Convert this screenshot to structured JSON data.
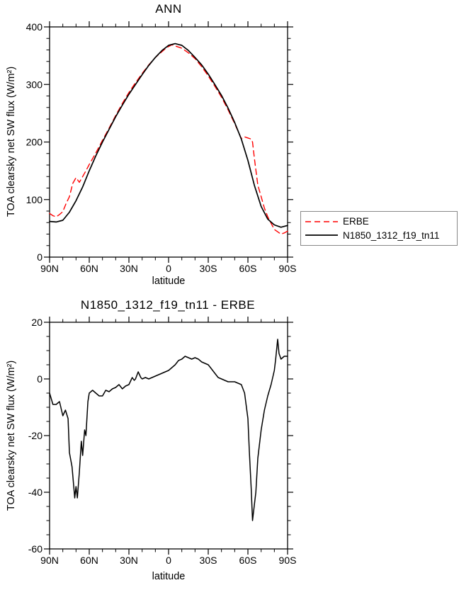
{
  "colors": {
    "background": "#ffffff",
    "frame": "#000000",
    "erbe_red": "#ff0000",
    "model_black": "#000000"
  },
  "chart_data": [
    {
      "type": "line",
      "title": "ANN",
      "xlabel": "latitude",
      "ylabel": "TOA clearsky net SW flux (W/m²)",
      "xlim": [
        90,
        -90
      ],
      "ylim": [
        0,
        400
      ],
      "x_minor_step": 10,
      "y_minor_step": 20,
      "xticks": [
        {
          "value": 90,
          "label": "90N"
        },
        {
          "value": 60,
          "label": "60N"
        },
        {
          "value": 30,
          "label": "30N"
        },
        {
          "value": 0,
          "label": "0"
        },
        {
          "value": -30,
          "label": "30S"
        },
        {
          "value": -60,
          "label": "60S"
        },
        {
          "value": -90,
          "label": "90S"
        }
      ],
      "yticks": [
        {
          "value": 0,
          "label": "0"
        },
        {
          "value": 100,
          "label": "100"
        },
        {
          "value": 200,
          "label": "200"
        },
        {
          "value": 300,
          "label": "300"
        },
        {
          "value": 400,
          "label": "400"
        }
      ],
      "legend_position": "right",
      "grid": false,
      "series": [
        {
          "name": "ERBE",
          "color": "#ff0000",
          "dash": "8,5",
          "width": 1.4,
          "x": [
            90,
            87.5,
            85,
            82.5,
            80,
            77.5,
            75,
            72.5,
            70,
            67.5,
            65,
            62.5,
            60,
            55,
            50,
            45,
            40,
            35,
            30,
            25,
            20,
            15,
            10,
            5,
            2.5,
            0,
            -2.5,
            -5,
            -10,
            -15,
            -20,
            -25,
            -30,
            -35,
            -40,
            -45,
            -50,
            -55,
            -57.5,
            -60,
            -62.5,
            -63.5,
            -65,
            -67.5,
            -70,
            -72.5,
            -75,
            -80,
            -85,
            -87.5,
            -90
          ],
          "values": [
            76,
            72,
            70,
            74,
            79,
            93,
            105,
            128,
            138,
            130,
            140,
            150,
            161,
            181,
            203,
            224,
            246,
            267,
            286,
            303,
            319,
            334,
            347,
            357,
            362,
            366,
            369,
            367,
            363,
            355,
            345,
            331,
            315,
            297,
            278,
            256,
            232,
            206,
            209,
            207,
            205,
            200,
            170,
            125,
            105,
            85,
            70,
            48,
            40,
            42,
            45
          ]
        },
        {
          "name": "N1850_1312_f19_tn11",
          "color": "#000000",
          "dash": null,
          "width": 1.7,
          "x": [
            90,
            85,
            80,
            75,
            70,
            65,
            60,
            55,
            50,
            45,
            40,
            35,
            30,
            25,
            20,
            15,
            10,
            5,
            0,
            -5,
            -10,
            -15,
            -20,
            -25,
            -30,
            -35,
            -40,
            -45,
            -50,
            -55,
            -60,
            -65,
            -70,
            -75,
            -80,
            -85,
            -90
          ],
          "values": [
            62,
            61,
            64,
            78,
            98,
            122,
            150,
            176,
            200,
            222,
            244,
            264,
            283,
            300,
            317,
            333,
            347,
            359,
            368,
            371,
            368,
            359,
            347,
            334,
            318,
            300,
            281,
            259,
            234,
            205,
            168,
            124,
            88,
            66,
            56,
            52,
            55
          ]
        }
      ]
    },
    {
      "type": "line",
      "title": "N1850_1312_f19_tn11 - ERBE",
      "xlabel": "latitude",
      "ylabel": "TOA clearsky net SW flux (W/m²)",
      "xlim": [
        90,
        -90
      ],
      "ylim": [
        -60,
        20
      ],
      "x_minor_step": 10,
      "y_minor_step": 5,
      "xticks": [
        {
          "value": 90,
          "label": "90N"
        },
        {
          "value": 60,
          "label": "60N"
        },
        {
          "value": 30,
          "label": "30N"
        },
        {
          "value": 0,
          "label": "0"
        },
        {
          "value": -30,
          "label": "30S"
        },
        {
          "value": -60,
          "label": "60S"
        },
        {
          "value": -90,
          "label": "90S"
        }
      ],
      "yticks": [
        {
          "value": -60,
          "label": "-60"
        },
        {
          "value": -40,
          "label": "-40"
        },
        {
          "value": -20,
          "label": "-20"
        },
        {
          "value": 0,
          "label": "0"
        },
        {
          "value": 20,
          "label": "20"
        }
      ],
      "legend_position": "none",
      "grid": false,
      "series": [
        {
          "name": "N1850_1312_f19_tn11 - ERBE",
          "color": "#000000",
          "dash": null,
          "width": 1.5,
          "x": [
            90,
            87.5,
            85,
            82.5,
            80,
            78,
            76,
            75,
            73,
            71,
            70,
            69,
            67.5,
            66,
            65,
            63.5,
            62.5,
            61,
            60,
            57.5,
            55,
            52.5,
            50,
            47.5,
            45,
            42.5,
            40,
            37.5,
            35,
            32.5,
            30,
            27.5,
            26,
            25,
            23,
            21,
            20,
            17.5,
            15,
            12.5,
            10,
            7.5,
            5,
            2.5,
            0,
            -2.5,
            -5,
            -7.5,
            -10,
            -12.5,
            -15,
            -17.5,
            -20,
            -22.5,
            -25,
            -27.5,
            -30,
            -32.5,
            -35,
            -37.5,
            -40,
            -42.5,
            -45,
            -47.5,
            -50,
            -52.5,
            -55,
            -57.5,
            -60,
            -61,
            -62.5,
            -63.5,
            -65,
            -66,
            -67.5,
            -70,
            -72.5,
            -75,
            -77.5,
            -80,
            -81,
            -82.5,
            -83.5,
            -85,
            -87.5,
            -90
          ],
          "values": [
            -5,
            -9,
            -9,
            -8,
            -13,
            -11,
            -14,
            -26,
            -31,
            -42,
            -38,
            -42,
            -33,
            -22,
            -27,
            -18,
            -20,
            -8,
            -5,
            -4,
            -5,
            -6,
            -6,
            -4,
            -4.5,
            -3.5,
            -3,
            -2,
            -3.5,
            -2.5,
            -2,
            0.5,
            -0.5,
            0,
            2.5,
            0.5,
            0,
            0.5,
            0,
            0.5,
            1,
            1.5,
            2,
            2.5,
            3,
            4,
            5,
            6.5,
            7,
            8,
            7.5,
            7,
            7.5,
            7,
            6,
            5.5,
            5,
            3.5,
            2,
            0.5,
            0,
            -0.5,
            -1,
            -1,
            -1,
            -1.5,
            -2,
            -5,
            -14,
            -25,
            -39,
            -50,
            -44,
            -40,
            -28,
            -18,
            -11,
            -6,
            -2,
            3,
            7,
            14,
            9,
            7,
            8,
            8
          ]
        }
      ]
    }
  ],
  "legend": {
    "entries": [
      {
        "label": "ERBE"
      },
      {
        "label": "N1850_1312_f19_tn11"
      }
    ]
  }
}
